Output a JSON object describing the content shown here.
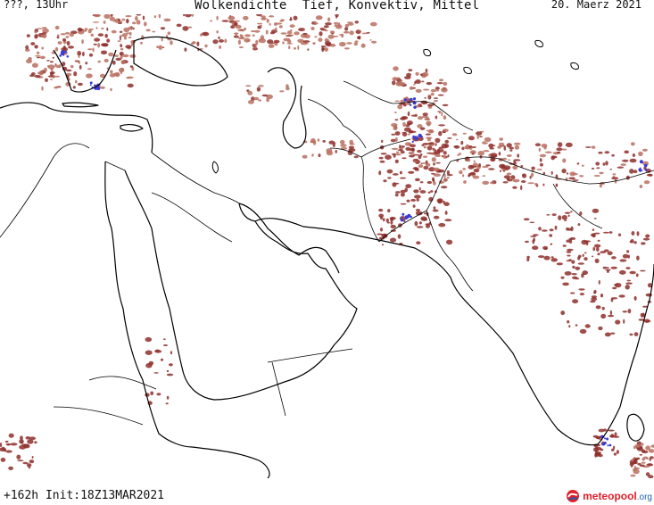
{
  "header": {
    "left": "???, 13Uhr",
    "title": "Wolkendichte  Tief, Konvektiv, Mittel",
    "date": "20. Maerz 2021"
  },
  "footer": {
    "run_info": "+162h Init:18Z13MAR2021"
  },
  "logo": {
    "brand": "meteopool",
    "tld": ".org",
    "colors": {
      "red": "#e0202a",
      "blue": "#1f5fb0"
    }
  },
  "legend_colors": {
    "low": "#b97060",
    "medium": "#8e2f2a",
    "convective": "#3a3ad8",
    "coast": "#000000"
  }
}
